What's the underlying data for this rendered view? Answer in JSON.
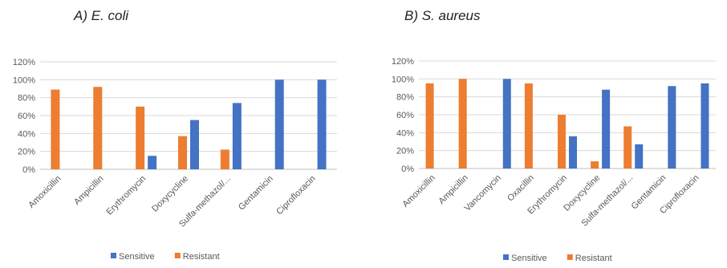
{
  "colors": {
    "sensitive": "#4472C4",
    "resistant": "#ED7D31",
    "grid": "#D9D9D9",
    "axis": "#BFBFBF"
  },
  "chart_data": [
    {
      "type": "bar",
      "title": "A) E. coli",
      "categories": [
        "Amoxicillin",
        "Ampicillin",
        "Erythromycin",
        "Doxycycline",
        "Sulfa-methazol/...",
        "Gentamicin",
        "Ciprofloxacin"
      ],
      "series": [
        {
          "name": "Sensitive",
          "values": [
            0,
            0,
            15,
            55,
            74,
            100,
            100
          ]
        },
        {
          "name": "Resistant",
          "values": [
            89,
            92,
            70,
            37,
            22,
            0,
            0
          ]
        }
      ],
      "y_ticks": [
        "0%",
        "20%",
        "40%",
        "60%",
        "80%",
        "100%",
        "120%"
      ],
      "ylim": [
        0,
        120
      ],
      "grid": true,
      "legend": "bottom",
      "xlabel": "",
      "ylabel": ""
    },
    {
      "type": "bar",
      "title": "B) S. aureus",
      "categories": [
        "Amoxicillin",
        "Ampicillin",
        "Vancomycin",
        "Oxacillin",
        "Erythromycin",
        "Doxycycline",
        "Sulfa-methazol/...",
        "Gentamicin",
        "Ciprofloxacin"
      ],
      "series": [
        {
          "name": "Sensitive",
          "values": [
            0,
            0,
            100,
            0,
            36,
            88,
            27,
            92,
            95
          ]
        },
        {
          "name": "Resistant",
          "values": [
            95,
            100,
            0,
            95,
            60,
            8,
            47,
            0,
            0
          ]
        }
      ],
      "y_ticks": [
        "0%",
        "20%",
        "40%",
        "60%",
        "80%",
        "100%",
        "120%"
      ],
      "ylim": [
        0,
        120
      ],
      "grid": true,
      "legend": "bottom",
      "xlabel": "",
      "ylabel": ""
    }
  ]
}
